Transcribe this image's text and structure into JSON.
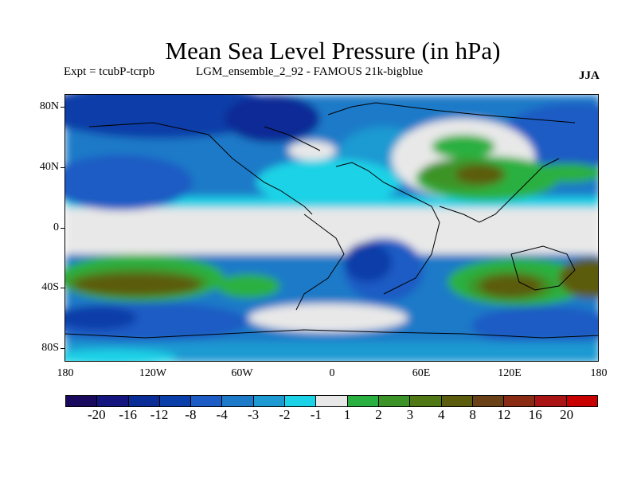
{
  "title": "Mean Sea Level Pressure (in hPa)",
  "experiment_label": "Expt = tcubP-tcrpb",
  "run_label": "LGM_ensemble_2_92 - FAMOUS 21k-bigblue",
  "season": "JJA",
  "lat_labels": [
    "80N",
    "40N",
    "0",
    "40S",
    "80S"
  ],
  "lon_labels": [
    "180",
    "120W",
    "60W",
    "0",
    "60E",
    "120E",
    "180"
  ],
  "colorbar": {
    "colors": [
      "#1a0a5e",
      "#14157f",
      "#0a2c96",
      "#0a3ea8",
      "#1c5cc4",
      "#1c7ac8",
      "#1e9ad2",
      "#1cd2e6",
      "#e8e8e8",
      "#2ab040",
      "#3c9428",
      "#507814",
      "#5c5c0e",
      "#6a4016",
      "#8a2c14",
      "#aa1414",
      "#c80000"
    ],
    "labels": [
      "-20",
      "-16",
      "-12",
      "-8",
      "-4",
      "-3",
      "-2",
      "-1",
      "1",
      "2",
      "3",
      "4",
      "8",
      "12",
      "16",
      "20"
    ]
  }
}
